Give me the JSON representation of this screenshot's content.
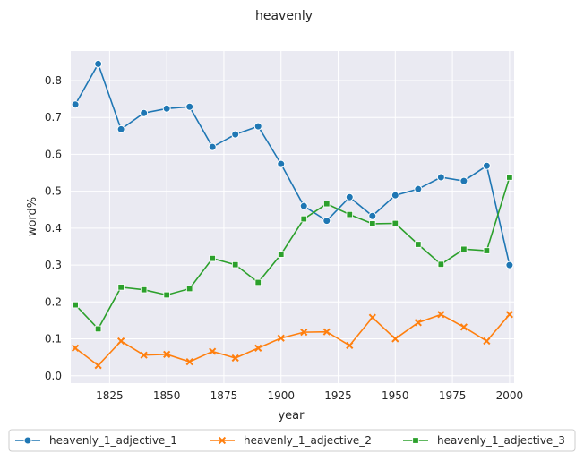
{
  "chart_data": {
    "type": "line",
    "title": "heavenly",
    "xlabel": "year",
    "ylabel": "word%",
    "xlim": [
      1808,
      2002
    ],
    "ylim": [
      -0.02,
      0.88
    ],
    "x_ticks": [
      1825,
      1850,
      1875,
      1900,
      1925,
      1950,
      1975,
      2000
    ],
    "y_ticks": [
      0.0,
      0.1,
      0.2,
      0.3,
      0.4,
      0.5,
      0.6,
      0.7,
      0.8
    ],
    "grid": true,
    "legend_position": "bottom",
    "x": [
      1810,
      1820,
      1830,
      1840,
      1850,
      1860,
      1870,
      1880,
      1890,
      1900,
      1910,
      1920,
      1930,
      1940,
      1950,
      1960,
      1970,
      1980,
      1990,
      2000
    ],
    "series": [
      {
        "name": "heavenly_1_adjective_1",
        "color": "#1f77b4",
        "marker": "circle",
        "values": [
          0.735,
          0.845,
          0.668,
          0.712,
          0.724,
          0.729,
          0.62,
          0.654,
          0.676,
          0.574,
          0.46,
          0.42,
          0.484,
          0.433,
          0.489,
          0.506,
          0.538,
          0.528,
          0.569,
          0.3
        ]
      },
      {
        "name": "heavenly_1_adjective_2",
        "color": "#ff7f0e",
        "marker": "x",
        "values": [
          0.075,
          0.028,
          0.094,
          0.056,
          0.058,
          0.038,
          0.066,
          0.048,
          0.075,
          0.102,
          0.118,
          0.119,
          0.082,
          0.158,
          0.1,
          0.144,
          0.166,
          0.132,
          0.094,
          0.166
        ]
      },
      {
        "name": "heavenly_1_adjective_3",
        "color": "#2ca02c",
        "marker": "square",
        "values": [
          0.192,
          0.127,
          0.24,
          0.233,
          0.219,
          0.236,
          0.318,
          0.301,
          0.253,
          0.329,
          0.425,
          0.466,
          0.437,
          0.412,
          0.413,
          0.356,
          0.302,
          0.343,
          0.339,
          0.538
        ]
      }
    ]
  }
}
